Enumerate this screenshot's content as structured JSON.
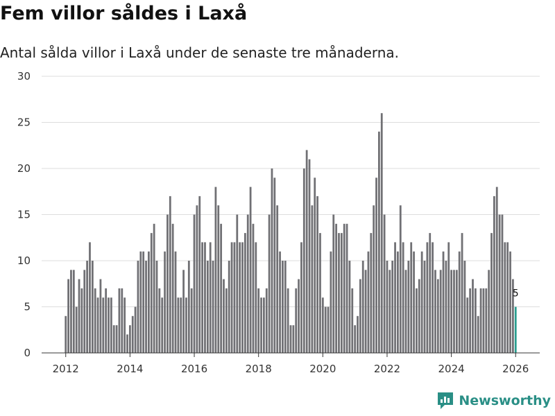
{
  "title": "Fem villor såldes i Laxå",
  "subtitle": "Antal sålda villor i Laxå under de senaste tre månaderna.",
  "brand": {
    "name": "Newsworthy",
    "icon": "newsworthy-logo-icon",
    "color": "#2a8f86"
  },
  "colors": {
    "bar": "#707074",
    "highlight": "#2a9d8f",
    "grid": "#dddddd",
    "axis": "#333333"
  },
  "chart_data": {
    "type": "bar",
    "title": "Fem villor såldes i Laxå",
    "xlabel": "",
    "ylabel": "",
    "ylim": [
      0,
      30
    ],
    "yticks": [
      0,
      5,
      10,
      15,
      20,
      25,
      30
    ],
    "xlim": [
      2011.25,
      2026.75
    ],
    "xticks": [
      2012,
      2014,
      2016,
      2018,
      2020,
      2022,
      2024,
      2026
    ],
    "xtick_labels": [
      "2012",
      "2014",
      "2016",
      "2018",
      "2020",
      "2022",
      "2024",
      "2026"
    ],
    "start_year": 2012,
    "start_month": 1,
    "values": [
      4,
      8,
      9,
      9,
      5,
      8,
      7,
      9,
      10,
      12,
      10,
      7,
      6,
      8,
      6,
      7,
      6,
      6,
      3,
      3,
      7,
      7,
      6,
      2,
      3,
      4,
      5,
      10,
      11,
      11,
      10,
      11,
      13,
      14,
      10,
      7,
      6,
      11,
      15,
      17,
      14,
      11,
      6,
      6,
      9,
      6,
      10,
      7,
      15,
      16,
      17,
      12,
      12,
      10,
      12,
      10,
      18,
      16,
      14,
      8,
      7,
      10,
      12,
      12,
      15,
      12,
      12,
      13,
      15,
      18,
      14,
      12,
      7,
      6,
      6,
      7,
      15,
      20,
      19,
      16,
      11,
      10,
      10,
      7,
      3,
      3,
      7,
      8,
      12,
      20,
      22,
      21,
      16,
      19,
      17,
      13,
      6,
      5,
      5,
      11,
      15,
      14,
      13,
      13,
      14,
      14,
      10,
      7,
      3,
      4,
      8,
      10,
      9,
      11,
      13,
      16,
      19,
      24,
      26,
      15,
      10,
      9,
      10,
      12,
      11,
      16,
      12,
      9,
      10,
      12,
      11,
      7,
      8,
      11,
      10,
      12,
      13,
      12,
      9,
      8,
      9,
      11,
      10,
      12,
      9,
      9,
      9,
      11,
      13,
      10,
      6,
      7,
      8,
      7,
      4,
      7,
      7,
      7,
      9,
      13,
      17,
      18,
      15,
      15,
      12,
      12,
      11,
      8,
      5
    ],
    "highlight_index": 168,
    "annotation": {
      "label": "5",
      "value": 5
    }
  }
}
